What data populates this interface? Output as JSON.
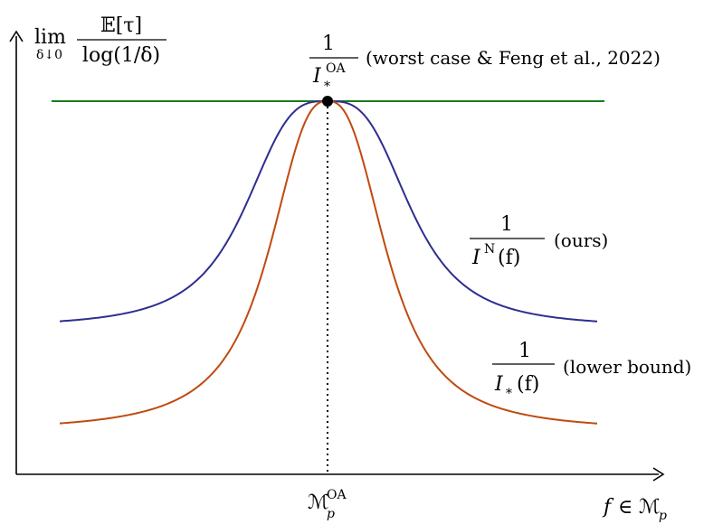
{
  "figure": {
    "y_axis_label": {
      "lim": "lim",
      "lim_sub": "δ↓0",
      "numerator": "𝔼[τ]",
      "denominator": "log(1/δ)"
    },
    "x_axis_label": {
      "var": "f",
      "rel": "∈",
      "set": "ℳ",
      "set_sub": "p"
    },
    "x_tick": {
      "base": "ℳ",
      "sub": "p",
      "sup": "OA"
    },
    "curves": [
      {
        "key": "worst",
        "color": "#1a7a1a",
        "label_num": "1",
        "label_den": "I",
        "label_den_sub": "*",
        "label_den_sup": "OA",
        "annotation": "(worst case & Feng et al., 2022)"
      },
      {
        "key": "ours",
        "color": "#2e2e8f",
        "label_num": "1",
        "label_den": "I",
        "label_den_sup": "N",
        "label_den_arg": "(f)",
        "annotation": "(ours)"
      },
      {
        "key": "lower",
        "color": "#c04a10",
        "label_num": "1",
        "label_den": "I",
        "label_den_sub": "*",
        "label_den_arg": "(f)",
        "annotation": "(lower bound)"
      }
    ],
    "peak_marker_color": "#000000"
  }
}
